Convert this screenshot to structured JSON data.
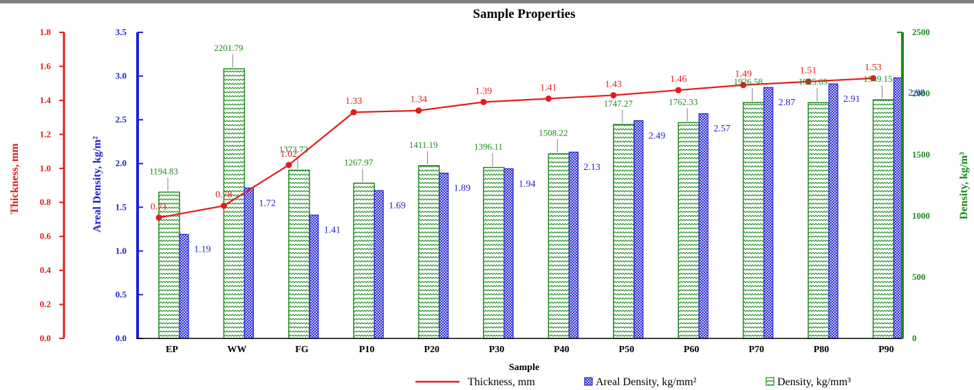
{
  "chart_data": {
    "type": "bar",
    "title": "Sample Properties",
    "xlabel": "Sample",
    "categories": [
      "EP",
      "WW",
      "FG",
      "P10",
      "P20",
      "P30",
      "P40",
      "P50",
      "P60",
      "P70",
      "P80",
      "P90"
    ],
    "series": [
      {
        "name": "Thickness, mm",
        "type": "line",
        "axis": "left-outer",
        "color": "#e41a1c",
        "values": [
          0.71,
          0.78,
          1.02,
          1.33,
          1.34,
          1.39,
          1.41,
          1.43,
          1.46,
          1.49,
          1.51,
          1.53
        ],
        "labels": [
          "0.71",
          "0.78",
          "1.02",
          "1.33",
          "1.34",
          "1.39",
          "1.41",
          "1.43",
          "1.46",
          "1.49",
          "1.51",
          "1.53"
        ]
      },
      {
        "name": "Areal Density, kg/mm²",
        "type": "bar",
        "axis": "left-inner",
        "color": "#1f1fd6",
        "values": [
          1.19,
          1.72,
          1.41,
          1.69,
          1.89,
          1.94,
          2.13,
          2.49,
          2.57,
          2.87,
          2.91,
          2.98
        ],
        "labels": [
          "1.19",
          "1.72",
          "1.41",
          "1.69",
          "1.89",
          "1.94",
          "2.13",
          "2.49",
          "2.57",
          "2.87",
          "2.91",
          "2.98"
        ]
      },
      {
        "name": "Density, kg/mm³",
        "type": "bar",
        "axis": "right",
        "color": "#1c8a1c",
        "values": [
          1194.83,
          2201.79,
          1373.72,
          1267.97,
          1411.19,
          1396.11,
          1508.22,
          1747.27,
          1762.33,
          1926.58,
          1925.69,
          1949.15
        ],
        "labels": [
          "1194.83",
          "2201.79",
          "1373.72",
          "1267.97",
          "1411.19",
          "1396.11",
          "1508.22",
          "1747.27",
          "1762.33",
          "1926.58",
          "1925.69",
          "1949.15"
        ]
      }
    ],
    "axes": {
      "left_outer": {
        "label": "Thickness, mm",
        "color": "#e41a1c",
        "ylim": [
          0,
          1.8
        ],
        "ticks": [
          "0.0",
          "0.2",
          "0.4",
          "0.6",
          "0.8",
          "1.0",
          "1.2",
          "1.4",
          "1.6",
          "1.8"
        ]
      },
      "left_inner": {
        "label": "Areal Density, kg/m²",
        "color": "#1f1fd6",
        "ylim": [
          0,
          3.5
        ],
        "ticks": [
          "0.0",
          "0.5",
          "1.0",
          "1.5",
          "2.0",
          "2.5",
          "3.0",
          "3.5"
        ]
      },
      "right": {
        "label": "Density, kg/m³",
        "color": "#1c8a1c",
        "ylim": [
          0,
          2500
        ],
        "ticks": [
          "0",
          "500",
          "1000",
          "1500",
          "2000",
          "2500"
        ]
      }
    },
    "legend_position": "bottom-right",
    "grid": false
  }
}
